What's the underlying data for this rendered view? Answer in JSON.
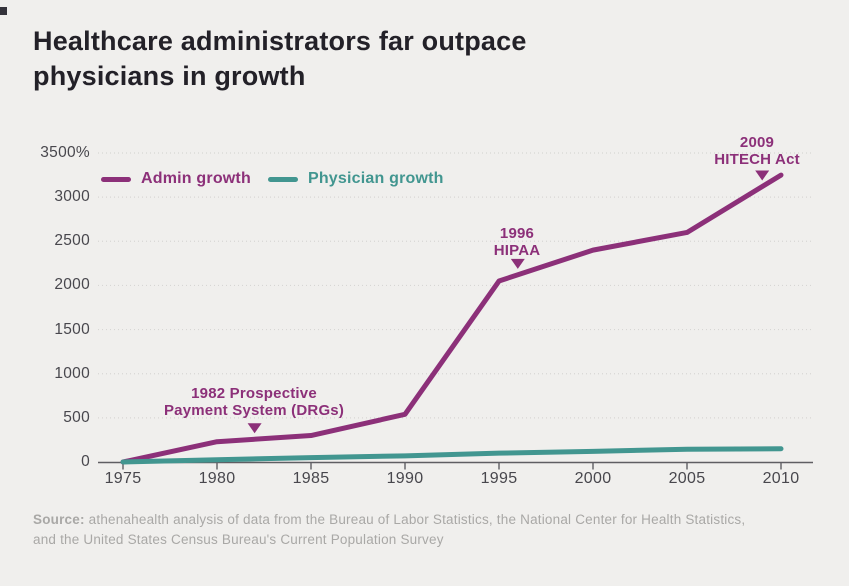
{
  "title": {
    "line1": "Healthcare administrators far outpace",
    "line2": "physicians in growth"
  },
  "legend": {
    "items": [
      {
        "label": "Admin growth",
        "color": "#8c3079"
      },
      {
        "label": "Physician growth",
        "color": "#429690"
      }
    ]
  },
  "source": {
    "label": "Source:",
    "text": "athenahealth analysis of data from the Bureau of Labor Statistics, the National Center for Health Statistics, and the United States Census Bureau's Current Population Survey"
  },
  "chart_data": {
    "type": "line",
    "title": "Healthcare administrators far outpace physicians in growth",
    "x": [
      1975,
      1980,
      1985,
      1990,
      1995,
      2000,
      2005,
      2010
    ],
    "series": [
      {
        "name": "Admin growth",
        "color": "#8c3079",
        "values": [
          0,
          230,
          300,
          540,
          2050,
          2400,
          2600,
          3250
        ]
      },
      {
        "name": "Physician growth",
        "color": "#429690",
        "values": [
          0,
          25,
          50,
          70,
          100,
          120,
          145,
          150
        ]
      }
    ],
    "xlim": [
      1975,
      2010
    ],
    "ylim": [
      0,
      3500
    ],
    "xticks": [
      "1975",
      "1980",
      "1985",
      "1990",
      "1995",
      "2000",
      "2005",
      "2010"
    ],
    "yticks": [
      {
        "value": 3500,
        "label": "3500%"
      },
      {
        "value": 3000,
        "label": "3000"
      },
      {
        "value": 2500,
        "label": "2500"
      },
      {
        "value": 2000,
        "label": "2000"
      },
      {
        "value": 1500,
        "label": "1500"
      },
      {
        "value": 1000,
        "label": "1000"
      },
      {
        "value": 500,
        "label": "500"
      },
      {
        "value": 0,
        "label": "0"
      }
    ],
    "grid": "horizontal-dotted",
    "legend_position": "top-left",
    "annotations": [
      {
        "year": 1982,
        "series": "Admin growth",
        "line1": "1982 Prospective",
        "line2": "Payment System (DRGs)"
      },
      {
        "year": 1996,
        "series": "Admin growth",
        "line1": "1996",
        "line2": "HIPAA"
      },
      {
        "year": 2009,
        "series": "Admin growth",
        "line1": "2009",
        "line2": "HITECH Act"
      }
    ]
  }
}
